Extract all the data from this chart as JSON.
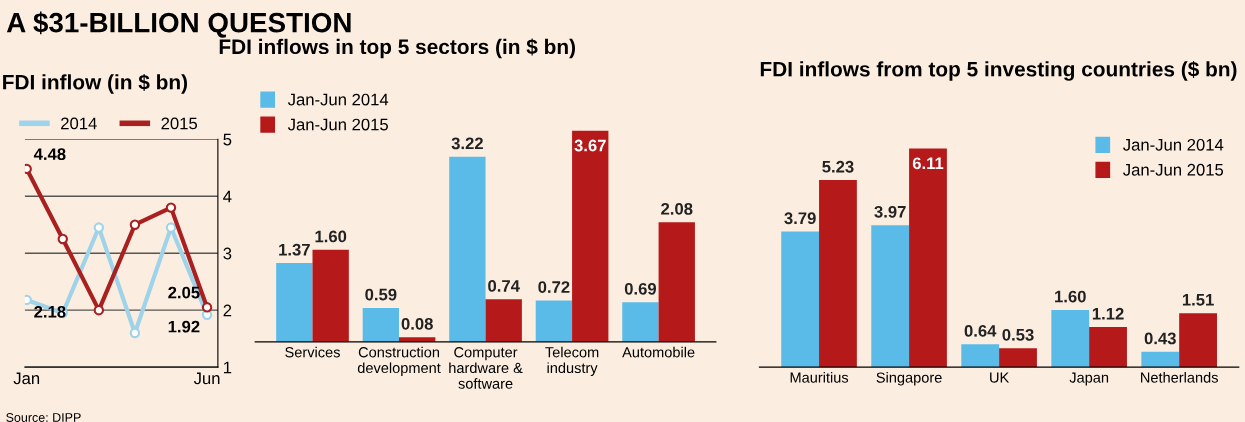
{
  "chart_data": [
    {
      "type": "line",
      "title": "A $31-BILLION QUESTION",
      "subtitle": "FDI inflow (in $ bn)",
      "categories": [
        "Jan",
        null,
        null,
        null,
        null,
        "Jun"
      ],
      "series": [
        {
          "name": "2014",
          "color": "#9fd3ea",
          "values": [
            2.18,
            1.95,
            3.45,
            1.6,
            3.45,
            1.92
          ],
          "value_labels": [
            "2.18",
            null,
            null,
            null,
            null,
            "1.92"
          ]
        },
        {
          "name": "2015",
          "color": "#a8201f",
          "values": [
            4.48,
            3.25,
            2.0,
            3.5,
            3.8,
            2.05
          ],
          "value_labels": [
            "4.48",
            null,
            null,
            null,
            null,
            "2.05"
          ]
        }
      ],
      "ylim": [
        1,
        5
      ],
      "yticks": [
        1,
        2,
        3,
        4,
        5
      ],
      "grid": "y",
      "legend": "top",
      "marker": "circle",
      "annotations": [
        "Source: DIPP"
      ]
    },
    {
      "type": "bar",
      "title": "FDI inflows in top 5 sectors (in $ bn)",
      "categories": [
        "Services",
        "Construction\ndevelopment",
        "Computer\nhardware &\nsoftware",
        "Telecom\nindustry",
        "Automobile"
      ],
      "series": [
        {
          "name": "Jan-Jun 2014",
          "color": "#5bbbe8",
          "values": [
            1.37,
            0.59,
            3.22,
            0.72,
            0.69
          ],
          "value_labels": [
            "1.37",
            "0.59",
            "3.22",
            "0.72",
            "0.69"
          ]
        },
        {
          "name": "Jan-Jun 2015",
          "color": "#b5191a",
          "values": [
            1.6,
            0.08,
            0.74,
            3.67,
            2.08
          ],
          "value_labels": [
            "1.60",
            "0.08",
            "0.74",
            "3.67",
            "2.08"
          ]
        }
      ],
      "legend": "top left"
    },
    {
      "type": "bar",
      "title": "FDI inflows from top 5 investing countries ($ bn)",
      "categories": [
        "Mauritius",
        "Singapore",
        "UK",
        "Japan",
        "Netherlands"
      ],
      "series": [
        {
          "name": "Jan-Jun 2014",
          "color": "#5bbbe8",
          "values": [
            3.79,
            3.97,
            0.64,
            1.6,
            0.43
          ],
          "value_labels": [
            "3.79",
            "3.97",
            "0.64",
            "1.60",
            "0.43"
          ]
        },
        {
          "name": "Jan-Jun 2015",
          "color": "#b5191a",
          "values": [
            5.23,
            6.11,
            0.53,
            1.12,
            1.51
          ],
          "value_labels": [
            "5.23",
            "6.11",
            "0.53",
            "1.12",
            "1.51"
          ]
        }
      ],
      "legend": "top right"
    }
  ]
}
